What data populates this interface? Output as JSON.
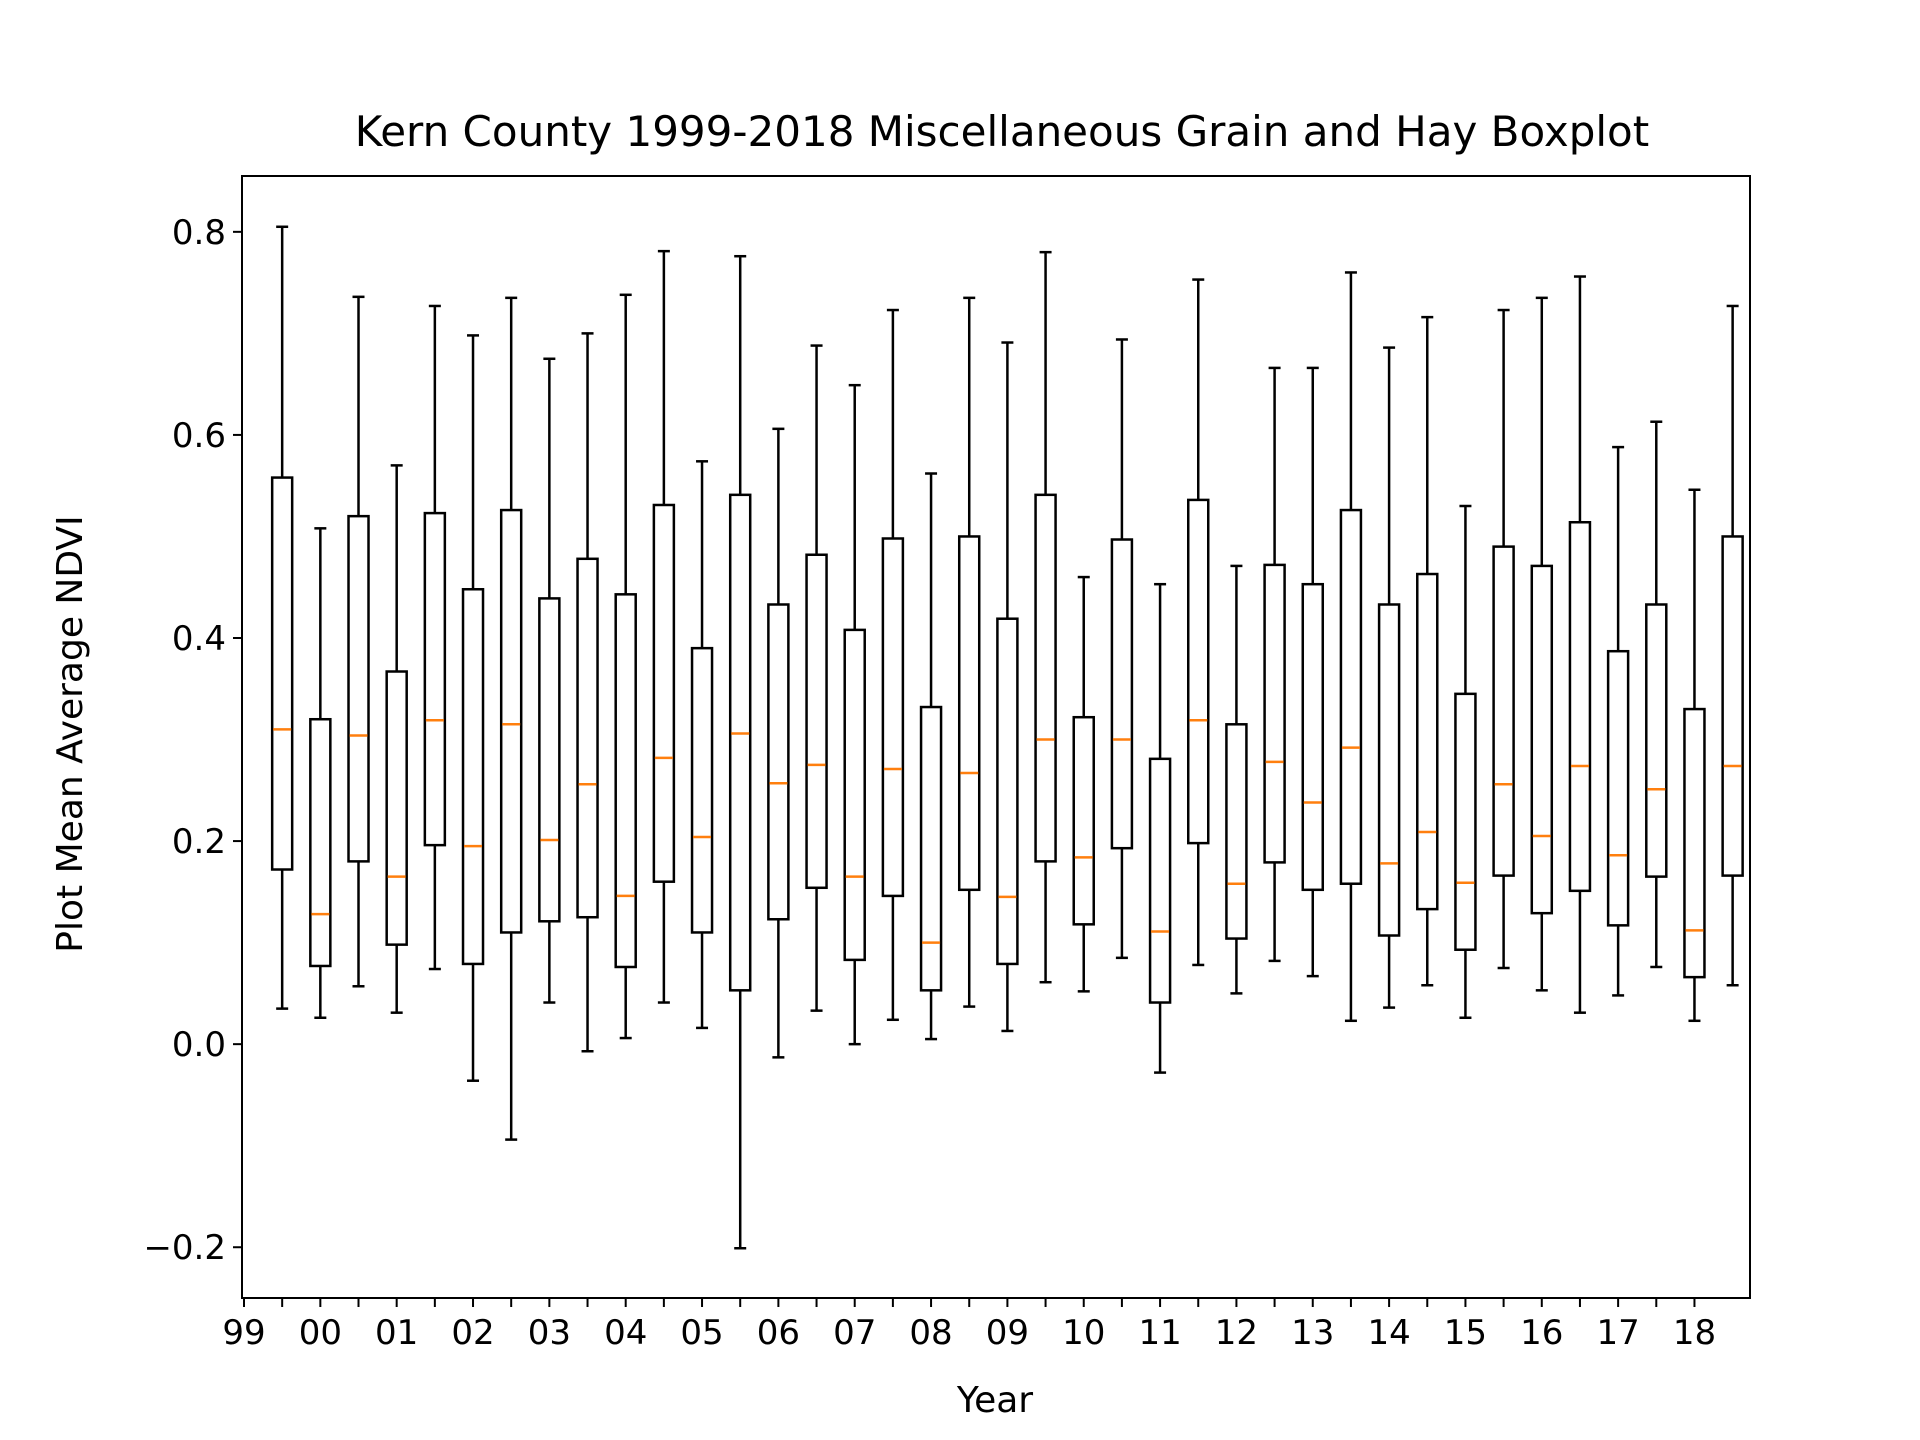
{
  "chart_data": {
    "type": "boxplot",
    "title": "Kern County 1999-2018 Miscellaneous Grain and Hay Boxplot",
    "xlabel": "Year",
    "ylabel": "Plot Mean Average NDVI",
    "ylim": [
      -0.25,
      0.855
    ],
    "yticks": [
      -0.2,
      0.0,
      0.2,
      0.4,
      0.6,
      0.8
    ],
    "ytick_labels": [
      "−0.2",
      "0.0",
      "0.2",
      "0.4",
      "0.6",
      "0.8"
    ],
    "xtick_labels": [
      "99",
      "00",
      "01",
      "02",
      "03",
      "04",
      "05",
      "06",
      "07",
      "08",
      "09",
      "10",
      "11",
      "12",
      "13",
      "14",
      "15",
      "16",
      "17",
      "18"
    ],
    "grid": false,
    "colors": {
      "box": "#000000",
      "median": "#ff7f0e",
      "axes": "#000000"
    },
    "boxes": [
      {
        "whislo": 0.035,
        "q1": 0.172,
        "med": 0.31,
        "q3": 0.558,
        "whishi": 0.805
      },
      {
        "whislo": 0.026,
        "q1": 0.077,
        "med": 0.128,
        "q3": 0.32,
        "whishi": 0.508
      },
      {
        "whislo": 0.057,
        "q1": 0.18,
        "med": 0.304,
        "q3": 0.52,
        "whishi": 0.736
      },
      {
        "whislo": 0.031,
        "q1": 0.098,
        "med": 0.165,
        "q3": 0.367,
        "whishi": 0.57
      },
      {
        "whislo": 0.074,
        "q1": 0.196,
        "med": 0.319,
        "q3": 0.523,
        "whishi": 0.727
      },
      {
        "whislo": -0.036,
        "q1": 0.079,
        "med": 0.195,
        "q3": 0.448,
        "whishi": 0.698
      },
      {
        "whislo": -0.094,
        "q1": 0.11,
        "med": 0.315,
        "q3": 0.526,
        "whishi": 0.735
      },
      {
        "whislo": 0.041,
        "q1": 0.121,
        "med": 0.201,
        "q3": 0.439,
        "whishi": 0.675
      },
      {
        "whislo": -0.007,
        "q1": 0.125,
        "med": 0.256,
        "q3": 0.478,
        "whishi": 0.7
      },
      {
        "whislo": 0.006,
        "q1": 0.076,
        "med": 0.146,
        "q3": 0.443,
        "whishi": 0.738
      },
      {
        "whislo": 0.041,
        "q1": 0.16,
        "med": 0.282,
        "q3": 0.531,
        "whishi": 0.781
      },
      {
        "whislo": 0.016,
        "q1": 0.11,
        "med": 0.204,
        "q3": 0.39,
        "whishi": 0.574
      },
      {
        "whislo": -0.201,
        "q1": 0.053,
        "med": 0.306,
        "q3": 0.541,
        "whishi": 0.776
      },
      {
        "whislo": -0.013,
        "q1": 0.123,
        "med": 0.257,
        "q3": 0.433,
        "whishi": 0.606
      },
      {
        "whislo": 0.033,
        "q1": 0.154,
        "med": 0.275,
        "q3": 0.482,
        "whishi": 0.688
      },
      {
        "whislo": 0.0,
        "q1": 0.083,
        "med": 0.165,
        "q3": 0.408,
        "whishi": 0.649
      },
      {
        "whislo": 0.024,
        "q1": 0.146,
        "med": 0.271,
        "q3": 0.498,
        "whishi": 0.723
      },
      {
        "whislo": 0.005,
        "q1": 0.053,
        "med": 0.1,
        "q3": 0.332,
        "whishi": 0.562
      },
      {
        "whislo": 0.037,
        "q1": 0.152,
        "med": 0.267,
        "q3": 0.5,
        "whishi": 0.735
      },
      {
        "whislo": 0.013,
        "q1": 0.079,
        "med": 0.145,
        "q3": 0.419,
        "whishi": 0.691
      },
      {
        "whislo": 0.061,
        "q1": 0.18,
        "med": 0.3,
        "q3": 0.541,
        "whishi": 0.78
      },
      {
        "whislo": 0.052,
        "q1": 0.118,
        "med": 0.184,
        "q3": 0.322,
        "whishi": 0.46
      },
      {
        "whislo": 0.085,
        "q1": 0.193,
        "med": 0.3,
        "q3": 0.497,
        "whishi": 0.694
      },
      {
        "whislo": -0.028,
        "q1": 0.041,
        "med": 0.111,
        "q3": 0.281,
        "whishi": 0.453
      },
      {
        "whislo": 0.078,
        "q1": 0.198,
        "med": 0.319,
        "q3": 0.536,
        "whishi": 0.753
      },
      {
        "whislo": 0.05,
        "q1": 0.104,
        "med": 0.158,
        "q3": 0.315,
        "whishi": 0.471
      },
      {
        "whislo": 0.082,
        "q1": 0.179,
        "med": 0.278,
        "q3": 0.472,
        "whishi": 0.666
      },
      {
        "whislo": 0.067,
        "q1": 0.152,
        "med": 0.238,
        "q3": 0.453,
        "whishi": 0.666
      },
      {
        "whislo": 0.023,
        "q1": 0.158,
        "med": 0.292,
        "q3": 0.526,
        "whishi": 0.76
      },
      {
        "whislo": 0.036,
        "q1": 0.107,
        "med": 0.178,
        "q3": 0.433,
        "whishi": 0.686
      },
      {
        "whislo": 0.058,
        "q1": 0.133,
        "med": 0.209,
        "q3": 0.463,
        "whishi": 0.716
      },
      {
        "whislo": 0.026,
        "q1": 0.093,
        "med": 0.159,
        "q3": 0.345,
        "whishi": 0.53
      },
      {
        "whislo": 0.075,
        "q1": 0.166,
        "med": 0.256,
        "q3": 0.49,
        "whishi": 0.723
      },
      {
        "whislo": 0.053,
        "q1": 0.129,
        "med": 0.205,
        "q3": 0.471,
        "whishi": 0.735
      },
      {
        "whislo": 0.031,
        "q1": 0.151,
        "med": 0.274,
        "q3": 0.514,
        "whishi": 0.756
      },
      {
        "whislo": 0.048,
        "q1": 0.117,
        "med": 0.186,
        "q3": 0.387,
        "whishi": 0.588
      },
      {
        "whislo": 0.076,
        "q1": 0.165,
        "med": 0.251,
        "q3": 0.433,
        "whishi": 0.613
      },
      {
        "whislo": 0.023,
        "q1": 0.066,
        "med": 0.112,
        "q3": 0.33,
        "whishi": 0.546
      },
      {
        "whislo": 0.058,
        "q1": 0.166,
        "med": 0.274,
        "q3": 0.5,
        "whishi": 0.727
      }
    ]
  }
}
